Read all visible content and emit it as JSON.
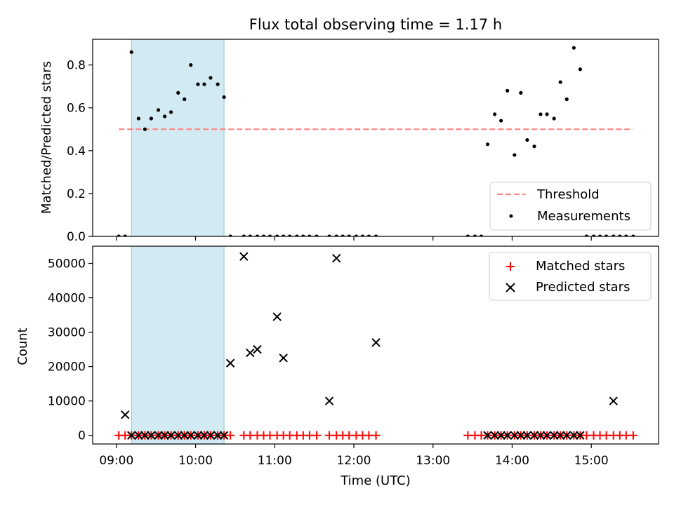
{
  "chart_data": [
    {
      "type": "scatter",
      "title": "Flux total observing time = 1.17 h",
      "xlabel": "",
      "ylabel": "Matched/Predicted stars",
      "xlim": [
        8.7,
        15.85
      ],
      "ylim": [
        0,
        0.92
      ],
      "yticks": [
        0.0,
        0.2,
        0.4,
        0.6,
        0.8
      ],
      "ytick_labels": [
        "0.0",
        "0.2",
        "0.4",
        "0.6",
        "0.8"
      ],
      "xticks": [
        9,
        10,
        11,
        12,
        13,
        14,
        15
      ],
      "shaded_interval": [
        9.19,
        10.36
      ],
      "shaded_color": "#add8e6",
      "legend": {
        "position": "lower-right",
        "items": [
          {
            "label": "Threshold",
            "marker": "dashed-line",
            "color": "#ff7f7f"
          },
          {
            "label": "Measurements",
            "marker": "dot",
            "color": "#000000"
          }
        ]
      },
      "threshold": {
        "value": 0.5,
        "x_range": [
          9.03,
          15.53
        ],
        "color": "#ff7f7f"
      },
      "series": [
        {
          "name": "Measurements",
          "color": "#000000",
          "x": [
            9.03,
            9.11,
            9.19,
            9.28,
            9.36,
            9.44,
            9.53,
            9.61,
            9.69,
            9.78,
            9.86,
            9.94,
            10.03,
            10.11,
            10.19,
            10.28,
            10.36,
            10.44,
            10.61,
            10.69,
            10.78,
            10.86,
            10.94,
            11.03,
            11.11,
            11.19,
            11.28,
            11.36,
            11.44,
            11.53,
            11.69,
            11.78,
            11.86,
            11.94,
            12.03,
            12.11,
            12.19,
            12.28,
            13.44,
            13.53,
            13.61,
            13.69,
            13.78,
            13.86,
            13.94,
            14.03,
            14.11,
            14.19,
            14.28,
            14.36,
            14.44,
            14.53,
            14.61,
            14.69,
            14.78,
            14.86,
            14.94,
            15.03,
            15.11,
            15.19,
            15.28,
            15.36,
            15.44,
            15.53
          ],
          "y": [
            0,
            0,
            0.86,
            0.55,
            0.5,
            0.55,
            0.59,
            0.56,
            0.58,
            0.67,
            0.64,
            0.8,
            0.71,
            0.71,
            0.74,
            0.71,
            0.65,
            0,
            0,
            0,
            0,
            0,
            0,
            0,
            0,
            0,
            0,
            0,
            0,
            0,
            0,
            0,
            0,
            0,
            0,
            0,
            0,
            0,
            0,
            0,
            0,
            0.43,
            0.57,
            0.54,
            0.68,
            0.38,
            0.67,
            0.45,
            0.42,
            0.57,
            0.57,
            0.55,
            0.72,
            0.64,
            0.88,
            0.78,
            0,
            0,
            0,
            0,
            0,
            0,
            0,
            0
          ]
        }
      ]
    },
    {
      "type": "scatter",
      "title": "",
      "xlabel": "Time (UTC)",
      "ylabel": "Count",
      "xlim": [
        8.7,
        15.85
      ],
      "ylim": [
        -2500,
        55000
      ],
      "yticks": [
        0,
        10000,
        20000,
        30000,
        40000,
        50000
      ],
      "ytick_labels": [
        "0",
        "10000",
        "20000",
        "30000",
        "40000",
        "50000"
      ],
      "xticks": [
        9,
        10,
        11,
        12,
        13,
        14,
        15
      ],
      "xtick_labels": [
        "09:00",
        "10:00",
        "11:00",
        "12:00",
        "13:00",
        "14:00",
        "15:00"
      ],
      "shaded_interval": [
        9.19,
        10.36
      ],
      "shaded_color": "#add8e6",
      "legend": {
        "position": "upper-right",
        "items": [
          {
            "label": "Matched stars",
            "marker": "plus",
            "color": "#ff0000"
          },
          {
            "label": "Predicted stars",
            "marker": "x",
            "color": "#000000"
          }
        ]
      },
      "series": [
        {
          "name": "Matched stars",
          "color": "#ff0000",
          "x": [
            9.03,
            9.11,
            9.19,
            9.28,
            9.36,
            9.44,
            9.53,
            9.61,
            9.69,
            9.78,
            9.86,
            9.94,
            10.03,
            10.11,
            10.19,
            10.28,
            10.36,
            10.44,
            10.61,
            10.69,
            10.78,
            10.86,
            10.94,
            11.03,
            11.11,
            11.19,
            11.28,
            11.36,
            11.44,
            11.53,
            11.69,
            11.78,
            11.86,
            11.94,
            12.03,
            12.11,
            12.19,
            12.28,
            13.44,
            13.53,
            13.61,
            13.69,
            13.78,
            13.86,
            13.94,
            14.03,
            14.11,
            14.19,
            14.28,
            14.36,
            14.44,
            14.53,
            14.61,
            14.69,
            14.78,
            14.86,
            14.94,
            15.03,
            15.11,
            15.19,
            15.28,
            15.36,
            15.44,
            15.53
          ],
          "y": [
            0,
            0,
            0,
            0,
            0,
            0,
            0,
            0,
            0,
            0,
            0,
            0,
            0,
            0,
            0,
            0,
            0,
            0,
            0,
            0,
            0,
            0,
            0,
            0,
            0,
            0,
            0,
            0,
            0,
            0,
            0,
            0,
            0,
            0,
            0,
            0,
            0,
            0,
            0,
            0,
            0,
            0,
            0,
            0,
            0,
            0,
            0,
            0,
            0,
            0,
            0,
            0,
            0,
            0,
            0,
            0,
            0,
            0,
            0,
            0,
            0,
            0,
            0,
            0
          ]
        },
        {
          "name": "Predicted stars",
          "color": "#000000",
          "x": [
            9.11,
            9.19,
            9.28,
            9.36,
            9.44,
            9.53,
            9.61,
            9.69,
            9.78,
            9.86,
            9.94,
            10.03,
            10.11,
            10.19,
            10.28,
            10.36,
            10.44,
            10.61,
            10.69,
            10.78,
            11.03,
            11.11,
            11.69,
            11.78,
            12.28,
            13.69,
            13.78,
            13.86,
            13.94,
            14.03,
            14.11,
            14.19,
            14.28,
            14.36,
            14.44,
            14.53,
            14.61,
            14.69,
            14.78,
            14.86,
            15.28
          ],
          "y": [
            6000,
            0,
            0,
            0,
            0,
            0,
            0,
            0,
            0,
            0,
            0,
            0,
            0,
            0,
            0,
            0,
            21000,
            52000,
            24000,
            25000,
            34500,
            22500,
            10000,
            51500,
            27000,
            0,
            0,
            0,
            0,
            0,
            0,
            0,
            0,
            0,
            0,
            0,
            0,
            0,
            0,
            0,
            10000
          ]
        }
      ]
    }
  ]
}
